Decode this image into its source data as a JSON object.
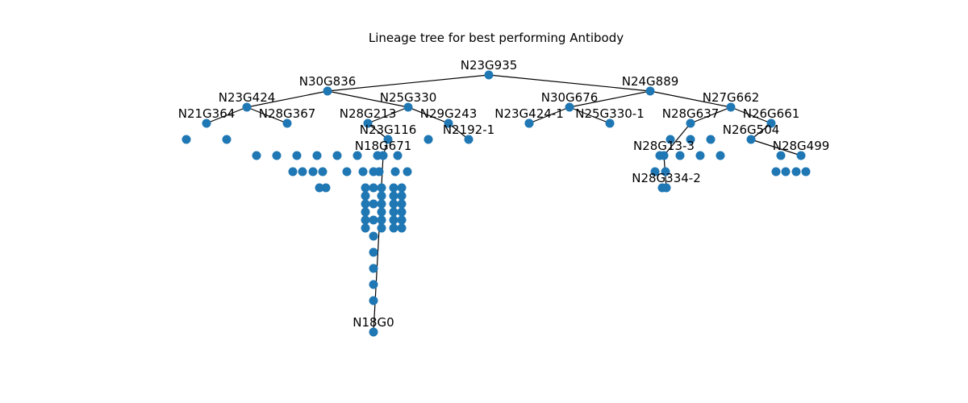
{
  "title": "Lineage tree for best performing Antibody",
  "colors": {
    "node": "#1f77b4",
    "edge": "#000000",
    "text": "#000000",
    "background": "#ffffff"
  },
  "nodes": [
    {
      "id": "N23G935"
    },
    {
      "id": "N30G836"
    },
    {
      "id": "N24G889"
    },
    {
      "id": "N23G424"
    },
    {
      "id": "N25G330"
    },
    {
      "id": "N30G676"
    },
    {
      "id": "N27G662"
    },
    {
      "id": "N21G364"
    },
    {
      "id": "N28G367"
    },
    {
      "id": "N28G213"
    },
    {
      "id": "N29G243"
    },
    {
      "id": "N23G424-1"
    },
    {
      "id": "N25G330-1"
    },
    {
      "id": "N28G637"
    },
    {
      "id": "N26G661"
    },
    {
      "id": "N2192-1"
    },
    {
      "id": "N26G504"
    },
    {
      "id": "N23G116"
    },
    {
      "id": "N18G671"
    },
    {
      "id": "N28G13-3"
    },
    {
      "id": "N28G499"
    },
    {
      "id": "N28G334-2"
    },
    {
      "id": "N18G0"
    }
  ],
  "edges": [
    [
      "N23G935",
      "N30G836"
    ],
    [
      "N23G935",
      "N24G889"
    ],
    [
      "N30G836",
      "N23G424"
    ],
    [
      "N30G836",
      "N25G330"
    ],
    [
      "N24G889",
      "N30G676"
    ],
    [
      "N24G889",
      "N27G662"
    ],
    [
      "N23G424",
      "N21G364"
    ],
    [
      "N23G424",
      "N28G367"
    ],
    [
      "N25G330",
      "N28G213"
    ],
    [
      "N25G330",
      "N29G243"
    ],
    [
      "N30G676",
      "N23G424-1"
    ],
    [
      "N30G676",
      "N25G330-1"
    ],
    [
      "N27G662",
      "N28G637"
    ],
    [
      "N27G662",
      "N26G661"
    ],
    [
      "N29G243",
      "N2192-1"
    ],
    [
      "N26G661",
      "N26G504"
    ],
    [
      "N28G213",
      "N23G116"
    ],
    [
      "N23G116",
      "N18G671"
    ],
    [
      "N28G637",
      "N28G13-3"
    ],
    [
      "N26G504",
      "N28G499"
    ],
    [
      "N28G13-3",
      "N28G334-2"
    ],
    [
      "N18G671",
      "N18G0"
    ]
  ]
}
